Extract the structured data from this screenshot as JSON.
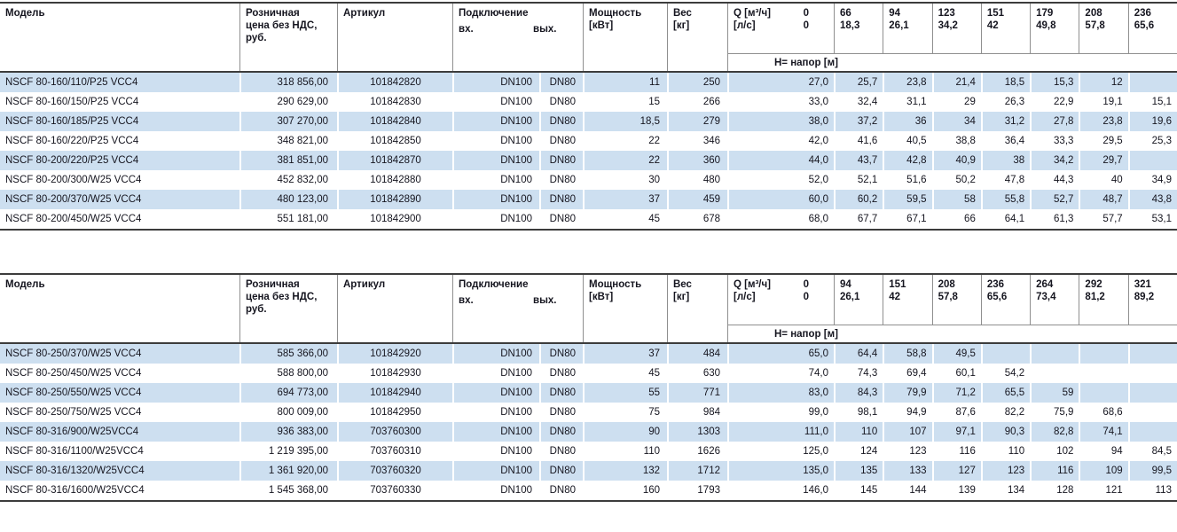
{
  "colors": {
    "row_alt": "#cddff0",
    "border_dark": "#3c3c3c",
    "border_light": "#8f8f8f",
    "text": "#15151f"
  },
  "tables": [
    {
      "headers": {
        "model": "Модель",
        "price_lines": [
          "Розничная",
          "цена без НДС,",
          "руб."
        ],
        "article": "Артикул",
        "connection": "Подключение",
        "conn_in": "вх.",
        "conn_out": "вых.",
        "power_lines": [
          "Мощность",
          "[кВт]"
        ],
        "weight_lines": [
          "Вес",
          "[кг]"
        ],
        "q_label": "Q [м³/ч]",
        "q_zero": "0",
        "ls_label": "[л/с]",
        "ls_zero": "0",
        "head_band": "Н= напор [м]",
        "q_values": [
          "66",
          "94",
          "123",
          "151",
          "179",
          "208",
          "236"
        ],
        "ls_values": [
          "18,3",
          "26,1",
          "34,2",
          "42",
          "49,8",
          "57,8",
          "65,6"
        ]
      },
      "rows": [
        {
          "model": "NSCF 80-160/110/P25 VCC4",
          "price": "318 856,00",
          "article": "101842820",
          "conn_in": "DN100",
          "conn_out": "DN80",
          "power": "11",
          "weight": "250",
          "heads": [
            "27,0",
            "25,7",
            "23,8",
            "21,4",
            "18,5",
            "15,3",
            "12",
            ""
          ]
        },
        {
          "model": "NSCF 80-160/150/P25 VCC4",
          "price": "290 629,00",
          "article": "101842830",
          "conn_in": "DN100",
          "conn_out": "DN80",
          "power": "15",
          "weight": "266",
          "heads": [
            "33,0",
            "32,4",
            "31,1",
            "29",
            "26,3",
            "22,9",
            "19,1",
            "15,1"
          ]
        },
        {
          "model": "NSCF 80-160/185/P25 VCC4",
          "price": "307 270,00",
          "article": "101842840",
          "conn_in": "DN100",
          "conn_out": "DN80",
          "power": "18,5",
          "weight": "279",
          "heads": [
            "38,0",
            "37,2",
            "36",
            "34",
            "31,2",
            "27,8",
            "23,8",
            "19,6"
          ]
        },
        {
          "model": "NSCF 80-160/220/P25 VCC4",
          "price": "348 821,00",
          "article": "101842850",
          "conn_in": "DN100",
          "conn_out": "DN80",
          "power": "22",
          "weight": "346",
          "heads": [
            "42,0",
            "41,6",
            "40,5",
            "38,8",
            "36,4",
            "33,3",
            "29,5",
            "25,3"
          ]
        },
        {
          "model": "NSCF 80-200/220/P25 VCC4",
          "price": "381 851,00",
          "article": "101842870",
          "conn_in": "DN100",
          "conn_out": "DN80",
          "power": "22",
          "weight": "360",
          "heads": [
            "44,0",
            "43,7",
            "42,8",
            "40,9",
            "38",
            "34,2",
            "29,7",
            ""
          ]
        },
        {
          "model": "NSCF 80-200/300/W25 VCC4",
          "price": "452 832,00",
          "article": "101842880",
          "conn_in": "DN100",
          "conn_out": "DN80",
          "power": "30",
          "weight": "480",
          "heads": [
            "52,0",
            "52,1",
            "51,6",
            "50,2",
            "47,8",
            "44,3",
            "40",
            "34,9"
          ]
        },
        {
          "model": "NSCF 80-200/370/W25 VCC4",
          "price": "480 123,00",
          "article": "101842890",
          "conn_in": "DN100",
          "conn_out": "DN80",
          "power": "37",
          "weight": "459",
          "heads": [
            "60,0",
            "60,2",
            "59,5",
            "58",
            "55,8",
            "52,7",
            "48,7",
            "43,8"
          ]
        },
        {
          "model": "NSCF 80-200/450/W25 VCC4",
          "price": "551 181,00",
          "article": "101842900",
          "conn_in": "DN100",
          "conn_out": "DN80",
          "power": "45",
          "weight": "678",
          "heads": [
            "68,0",
            "67,7",
            "67,1",
            "66",
            "64,1",
            "61,3",
            "57,7",
            "53,1"
          ]
        }
      ]
    },
    {
      "headers": {
        "model": "Модель",
        "price_lines": [
          "Розничная",
          "цена без НДС,",
          "руб."
        ],
        "article": "Артикул",
        "connection": "Подключение",
        "conn_in": "вх.",
        "conn_out": "вых.",
        "power_lines": [
          "Мощность",
          "[кВт]"
        ],
        "weight_lines": [
          "Вес",
          "[кг]"
        ],
        "q_label": "Q [м³/ч]",
        "q_zero": "0",
        "ls_label": "[л/с]",
        "ls_zero": "0",
        "head_band": "Н= напор [м]",
        "q_values": [
          "94",
          "151",
          "208",
          "236",
          "264",
          "292",
          "321"
        ],
        "ls_values": [
          "26,1",
          "42",
          "57,8",
          "65,6",
          "73,4",
          "81,2",
          "89,2"
        ]
      },
      "rows": [
        {
          "model": "NSCF 80-250/370/W25 VCC4",
          "price": "585 366,00",
          "article": "101842920",
          "conn_in": "DN100",
          "conn_out": "DN80",
          "power": "37",
          "weight": "484",
          "heads": [
            "65,0",
            "64,4",
            "58,8",
            "49,5",
            "",
            "",
            "",
            ""
          ]
        },
        {
          "model": "NSCF 80-250/450/W25 VCC4",
          "price": "588 800,00",
          "article": "101842930",
          "conn_in": "DN100",
          "conn_out": "DN80",
          "power": "45",
          "weight": "630",
          "heads": [
            "74,0",
            "74,3",
            "69,4",
            "60,1",
            "54,2",
            "",
            "",
            ""
          ]
        },
        {
          "model": "NSCF 80-250/550/W25 VCC4",
          "price": "694 773,00",
          "article": "101842940",
          "conn_in": "DN100",
          "conn_out": "DN80",
          "power": "55",
          "weight": "771",
          "heads": [
            "83,0",
            "84,3",
            "79,9",
            "71,2",
            "65,5",
            "59",
            "",
            ""
          ]
        },
        {
          "model": "NSCF 80-250/750/W25 VCC4",
          "price": "800 009,00",
          "article": "101842950",
          "conn_in": "DN100",
          "conn_out": "DN80",
          "power": "75",
          "weight": "984",
          "heads": [
            "99,0",
            "98,1",
            "94,9",
            "87,6",
            "82,2",
            "75,9",
            "68,6",
            ""
          ]
        },
        {
          "model": "NSCF 80-316/900/W25VCC4",
          "price": "936 383,00",
          "article": "703760300",
          "conn_in": "DN100",
          "conn_out": "DN80",
          "power": "90",
          "weight": "1303",
          "heads": [
            "111,0",
            "110",
            "107",
            "97,1",
            "90,3",
            "82,8",
            "74,1",
            ""
          ]
        },
        {
          "model": "NSCF 80-316/1100/W25VCC4",
          "price": "1 219 395,00",
          "article": "703760310",
          "conn_in": "DN100",
          "conn_out": "DN80",
          "power": "110",
          "weight": "1626",
          "heads": [
            "125,0",
            "124",
            "123",
            "116",
            "110",
            "102",
            "94",
            "84,5"
          ]
        },
        {
          "model": "NSCF 80-316/1320/W25VCC4",
          "price": "1 361 920,00",
          "article": "703760320",
          "conn_in": "DN100",
          "conn_out": "DN80",
          "power": "132",
          "weight": "1712",
          "heads": [
            "135,0",
            "135",
            "133",
            "127",
            "123",
            "116",
            "109",
            "99,5"
          ]
        },
        {
          "model": "NSCF 80-316/1600/W25VCC4",
          "price": "1 545 368,00",
          "article": "703760330",
          "conn_in": "DN100",
          "conn_out": "DN80",
          "power": "160",
          "weight": "1793",
          "heads": [
            "146,0",
            "145",
            "144",
            "139",
            "134",
            "128",
            "121",
            "113"
          ]
        }
      ]
    }
  ]
}
